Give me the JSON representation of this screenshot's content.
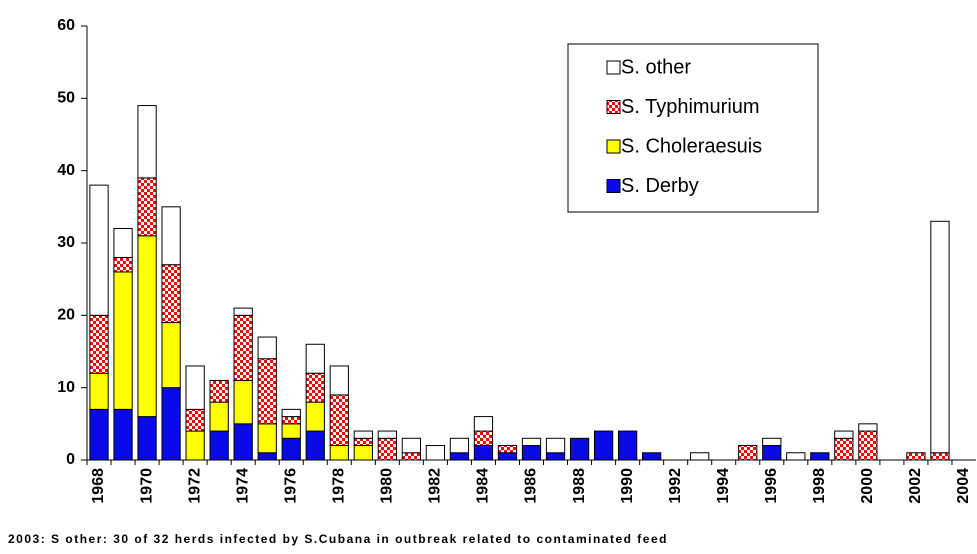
{
  "chart_data": {
    "type": "stacked_bar",
    "footnote": "2003: S other: 30 of 32 herds infected by S.Cubana in outbreak related to contaminated feed",
    "categories": [
      "1968",
      null,
      "1970",
      null,
      "1972",
      null,
      "1974",
      null,
      "1976",
      null,
      "1978",
      null,
      "1980",
      null,
      "1982",
      null,
      "1984",
      null,
      "1986",
      null,
      "1988",
      null,
      "1990",
      null,
      "1992",
      null,
      "1994",
      null,
      "1996",
      null,
      "1998",
      null,
      "2000",
      null,
      "2002",
      null,
      "2004"
    ],
    "series": [
      {
        "name": "S. Derby",
        "color": "#0a0ae6",
        "values": [
          7,
          7,
          6,
          10,
          0,
          4,
          5,
          1,
          3,
          4,
          0,
          0,
          0,
          0,
          0,
          1,
          2,
          1,
          2,
          1,
          3,
          4,
          4,
          1,
          0,
          0,
          0,
          0,
          2,
          0,
          1,
          0,
          0,
          0,
          0,
          0,
          0
        ]
      },
      {
        "name": "S. Choleraesuis",
        "color": "#ffff00",
        "values": [
          5,
          19,
          25,
          9,
          4,
          4,
          6,
          4,
          2,
          4,
          2,
          2,
          0,
          0,
          0,
          0,
          0,
          0,
          0,
          0,
          0,
          0,
          0,
          0,
          0,
          0,
          0,
          0,
          0,
          0,
          0,
          0,
          0,
          0,
          0,
          0,
          0
        ]
      },
      {
        "name": "S. Typhimurium",
        "color": "#ff0000",
        "pattern": "dots",
        "values": [
          8,
          2,
          8,
          8,
          3,
          3,
          9,
          9,
          1,
          4,
          7,
          1,
          3,
          1,
          0,
          0,
          2,
          1,
          0,
          0,
          0,
          0,
          0,
          0,
          0,
          0,
          0,
          2,
          0,
          0,
          0,
          3,
          4,
          0,
          1,
          1,
          0
        ]
      },
      {
        "name": "S. other",
        "color": "#ffffff",
        "values": [
          18,
          4,
          10,
          8,
          6,
          0,
          1,
          3,
          1,
          4,
          4,
          1,
          1,
          2,
          2,
          2,
          2,
          0,
          1,
          2,
          0,
          0,
          0,
          0,
          0,
          1,
          0,
          0,
          1,
          1,
          0,
          1,
          1,
          0,
          0,
          32,
          0
        ]
      }
    ],
    "ylim": [
      0,
      60
    ],
    "yticks": [
      0,
      10,
      20,
      30,
      40,
      50,
      60
    ],
    "grid": false,
    "legend": "upper right"
  }
}
